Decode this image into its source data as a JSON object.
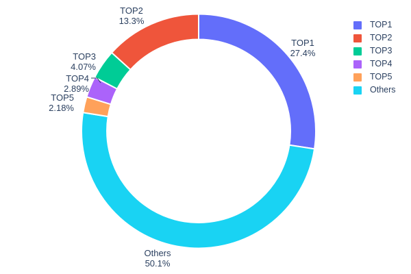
{
  "chart_data": {
    "type": "pie",
    "subtype": "donut",
    "hole_ratio": 0.78,
    "title": "",
    "labels": [
      "TOP1",
      "TOP2",
      "TOP3",
      "TOP4",
      "TOP5",
      "Others"
    ],
    "values": [
      27.4,
      13.3,
      4.07,
      2.89,
      2.18,
      50.1
    ],
    "percent_texts": [
      "27.4%",
      "13.3%",
      "4.07%",
      "2.89%",
      "2.18%",
      "50.1%"
    ],
    "colors": [
      "#636efa",
      "#ef553b",
      "#00cc96",
      "#ab63fa",
      "#ffa15a",
      "#19d3f3"
    ],
    "slice_order_clockwise_from_top": [
      "TOP1",
      "Others",
      "TOP5",
      "TOP4",
      "TOP3",
      "TOP2"
    ],
    "labels_position": "outside",
    "leader_line_slices": [
      "TOP4"
    ],
    "text_color": "#2a3f5f",
    "separator_color": "#ffffff",
    "background": "#ffffff",
    "legend": {
      "position": "right",
      "entries": [
        {
          "label": "TOP1",
          "color": "#636efa"
        },
        {
          "label": "TOP2",
          "color": "#ef553b"
        },
        {
          "label": "TOP3",
          "color": "#00cc96"
        },
        {
          "label": "TOP4",
          "color": "#ab63fa"
        },
        {
          "label": "TOP5",
          "color": "#ffa15a"
        },
        {
          "label": "Others",
          "color": "#19d3f3"
        }
      ]
    }
  }
}
